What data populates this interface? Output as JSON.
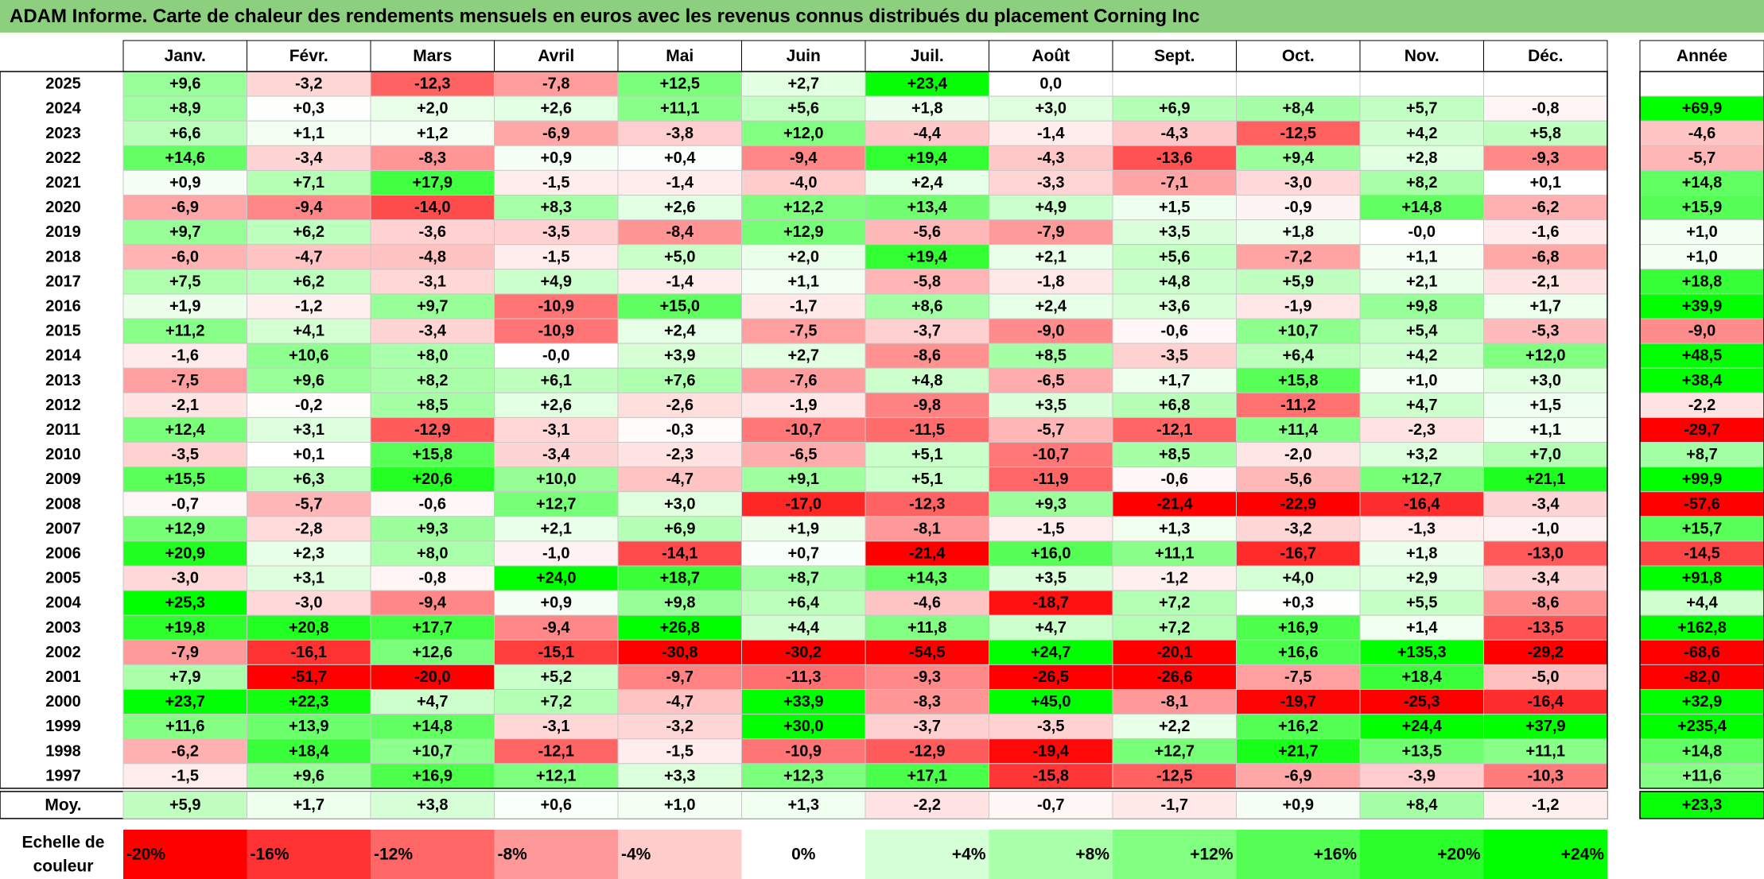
{
  "title": "ADAM Informe. Carte de chaleur des rendements mensuels en euros avec les revenus connus distribués du placement Corning Inc",
  "chart_data": {
    "type": "heatmap",
    "title": "ADAM Informe. Carte de chaleur des rendements mensuels en euros avec les revenus connus distribués du placement Corning Inc",
    "columns": [
      "Janv.",
      "Févr.",
      "Mars",
      "Avril",
      "Mai",
      "Juin",
      "Juil.",
      "Août",
      "Sept.",
      "Oct.",
      "Nov.",
      "Déc."
    ],
    "annual_header": "Année",
    "rows": [
      {
        "year": "2025",
        "values": [
          "+9,6",
          "-3,2",
          "-12,3",
          "-7,8",
          "+12,5",
          "+2,7",
          "+23,4",
          "0,0",
          "",
          "",
          "",
          ""
        ],
        "annual": ""
      },
      {
        "year": "2024",
        "values": [
          "+8,9",
          "+0,3",
          "+2,0",
          "+2,6",
          "+11,1",
          "+5,6",
          "+1,8",
          "+3,0",
          "+6,9",
          "+8,4",
          "+5,7",
          "-0,8"
        ],
        "annual": "+69,9"
      },
      {
        "year": "2023",
        "values": [
          "+6,6",
          "+1,1",
          "+1,2",
          "-6,9",
          "-3,8",
          "+12,0",
          "-4,4",
          "-1,4",
          "-4,3",
          "-12,5",
          "+4,2",
          "+5,8"
        ],
        "annual": "-4,6"
      },
      {
        "year": "2022",
        "values": [
          "+14,6",
          "-3,4",
          "-8,3",
          "+0,9",
          "+0,4",
          "-9,4",
          "+19,4",
          "-4,3",
          "-13,6",
          "+9,4",
          "+2,8",
          "-9,3"
        ],
        "annual": "-5,7"
      },
      {
        "year": "2021",
        "values": [
          "+0,9",
          "+7,1",
          "+17,9",
          "-1,5",
          "-1,4",
          "-4,0",
          "+2,4",
          "-3,3",
          "-7,1",
          "-3,0",
          "+8,2",
          "+0,1"
        ],
        "annual": "+14,8"
      },
      {
        "year": "2020",
        "values": [
          "-6,9",
          "-9,4",
          "-14,0",
          "+8,3",
          "+2,6",
          "+12,2",
          "+13,4",
          "+4,9",
          "+1,5",
          "-0,9",
          "+14,8",
          "-6,2"
        ],
        "annual": "+15,9"
      },
      {
        "year": "2019",
        "values": [
          "+9,7",
          "+6,2",
          "-3,6",
          "-3,5",
          "-8,4",
          "+12,9",
          "-5,6",
          "-7,9",
          "+3,5",
          "+1,8",
          "-0,0",
          "-1,6"
        ],
        "annual": "+1,0"
      },
      {
        "year": "2018",
        "values": [
          "-6,0",
          "-4,7",
          "-4,8",
          "-1,5",
          "+5,0",
          "+2,0",
          "+19,4",
          "+2,1",
          "+5,6",
          "-7,2",
          "+1,1",
          "-6,8"
        ],
        "annual": "+1,0"
      },
      {
        "year": "2017",
        "values": [
          "+7,5",
          "+6,2",
          "-3,1",
          "+4,9",
          "-1,4",
          "+1,1",
          "-5,8",
          "-1,8",
          "+4,8",
          "+5,9",
          "+2,1",
          "-2,1"
        ],
        "annual": "+18,8"
      },
      {
        "year": "2016",
        "values": [
          "+1,9",
          "-1,2",
          "+9,7",
          "-10,9",
          "+15,0",
          "-1,7",
          "+8,6",
          "+2,4",
          "+3,6",
          "-1,9",
          "+9,8",
          "+1,7"
        ],
        "annual": "+39,9"
      },
      {
        "year": "2015",
        "values": [
          "+11,2",
          "+4,1",
          "-3,4",
          "-10,9",
          "+2,4",
          "-7,5",
          "-3,7",
          "-9,0",
          "-0,6",
          "+10,7",
          "+5,4",
          "-5,3"
        ],
        "annual": "-9,0"
      },
      {
        "year": "2014",
        "values": [
          "-1,6",
          "+10,6",
          "+8,0",
          "-0,0",
          "+3,9",
          "+2,7",
          "-8,6",
          "+8,5",
          "-3,5",
          "+6,4",
          "+4,2",
          "+12,0"
        ],
        "annual": "+48,5"
      },
      {
        "year": "2013",
        "values": [
          "-7,5",
          "+9,6",
          "+8,2",
          "+6,1",
          "+7,6",
          "-7,6",
          "+4,8",
          "-6,5",
          "+1,7",
          "+15,8",
          "+1,0",
          "+3,0"
        ],
        "annual": "+38,4"
      },
      {
        "year": "2012",
        "values": [
          "-2,1",
          "-0,2",
          "+8,5",
          "+2,6",
          "-2,6",
          "-1,9",
          "-9,8",
          "+3,5",
          "+6,8",
          "-11,2",
          "+4,7",
          "+1,5"
        ],
        "annual": "-2,2"
      },
      {
        "year": "2011",
        "values": [
          "+12,4",
          "+3,1",
          "-12,9",
          "-3,1",
          "-0,3",
          "-10,7",
          "-11,5",
          "-5,7",
          "-12,1",
          "+11,4",
          "-2,3",
          "+1,1"
        ],
        "annual": "-29,7"
      },
      {
        "year": "2010",
        "values": [
          "-3,5",
          "+0,1",
          "+15,8",
          "-3,4",
          "-2,3",
          "-6,5",
          "+5,1",
          "-10,7",
          "+8,5",
          "-2,0",
          "+3,2",
          "+7,0"
        ],
        "annual": "+8,7"
      },
      {
        "year": "2009",
        "values": [
          "+15,5",
          "+6,3",
          "+20,6",
          "+10,0",
          "-4,7",
          "+9,1",
          "+5,1",
          "-11,9",
          "-0,6",
          "-5,6",
          "+12,7",
          "+21,1"
        ],
        "annual": "+99,9"
      },
      {
        "year": "2008",
        "values": [
          "-0,7",
          "-5,7",
          "-0,6",
          "+12,7",
          "+3,0",
          "-17,0",
          "-12,3",
          "+9,3",
          "-21,4",
          "-22,9",
          "-16,4",
          "-3,4"
        ],
        "annual": "-57,6"
      },
      {
        "year": "2007",
        "values": [
          "+12,9",
          "-2,8",
          "+9,3",
          "+2,1",
          "+6,9",
          "+1,9",
          "-8,1",
          "-1,5",
          "+1,3",
          "-3,2",
          "-1,3",
          "-1,0"
        ],
        "annual": "+15,7"
      },
      {
        "year": "2006",
        "values": [
          "+20,9",
          "+2,3",
          "+8,0",
          "-1,0",
          "-14,1",
          "+0,7",
          "-21,4",
          "+16,0",
          "+11,1",
          "-16,7",
          "+1,8",
          "-13,0"
        ],
        "annual": "-14,5"
      },
      {
        "year": "2005",
        "values": [
          "-3,0",
          "+3,1",
          "-0,8",
          "+24,0",
          "+18,7",
          "+8,7",
          "+14,3",
          "+3,5",
          "-1,2",
          "+4,0",
          "+2,9",
          "-3,4"
        ],
        "annual": "+91,8"
      },
      {
        "year": "2004",
        "values": [
          "+25,3",
          "-3,0",
          "-9,4",
          "+0,9",
          "+9,8",
          "+6,4",
          "-4,6",
          "-18,7",
          "+7,2",
          "+0,3",
          "+5,5",
          "-8,6"
        ],
        "annual": "+4,4"
      },
      {
        "year": "2003",
        "values": [
          "+19,8",
          "+20,8",
          "+17,7",
          "-9,4",
          "+26,8",
          "+4,4",
          "+11,8",
          "+4,7",
          "+7,2",
          "+16,9",
          "+1,4",
          "-13,5"
        ],
        "annual": "+162,8"
      },
      {
        "year": "2002",
        "values": [
          "-7,9",
          "-16,1",
          "+12,6",
          "-15,1",
          "-30,8",
          "-30,2",
          "-54,5",
          "+24,7",
          "-20,1",
          "+16,6",
          "+135,3",
          "-29,2"
        ],
        "annual": "-68,6"
      },
      {
        "year": "2001",
        "values": [
          "+7,9",
          "-51,7",
          "-20,0",
          "+5,2",
          "-9,7",
          "-11,3",
          "-9,3",
          "-26,5",
          "-26,6",
          "-7,5",
          "+18,4",
          "-5,0"
        ],
        "annual": "-82,0"
      },
      {
        "year": "2000",
        "values": [
          "+23,7",
          "+22,3",
          "+4,7",
          "+7,2",
          "-4,7",
          "+33,9",
          "-8,3",
          "+45,0",
          "-8,1",
          "-19,7",
          "-25,3",
          "-16,4"
        ],
        "annual": "+32,9"
      },
      {
        "year": "1999",
        "values": [
          "+11,6",
          "+13,9",
          "+14,8",
          "-3,1",
          "-3,2",
          "+30,0",
          "-3,7",
          "-3,5",
          "+2,2",
          "+16,2",
          "+24,4",
          "+37,9"
        ],
        "annual": "+235,4"
      },
      {
        "year": "1998",
        "values": [
          "-6,2",
          "+18,4",
          "+10,7",
          "-12,1",
          "-1,5",
          "-10,9",
          "-12,9",
          "-19,4",
          "+12,7",
          "+21,7",
          "+13,5",
          "+11,1"
        ],
        "annual": "+14,8"
      },
      {
        "year": "1997",
        "values": [
          "-1,5",
          "+9,6",
          "+16,9",
          "+12,1",
          "+3,3",
          "+12,3",
          "+17,1",
          "-15,8",
          "-12,5",
          "-6,9",
          "-3,9",
          "-10,3"
        ],
        "annual": "+11,6"
      }
    ],
    "average": {
      "label": "Moy.",
      "values": [
        "+5,9",
        "+1,7",
        "+3,8",
        "+0,6",
        "+1,0",
        "+1,3",
        "-2,2",
        "-0,7",
        "-1,7",
        "+0,9",
        "+8,4",
        "-1,2"
      ],
      "annual": "+23,3"
    },
    "scale": {
      "label_line1": "Echelle de",
      "label_line2": "couleur",
      "stops": [
        "-20%",
        "-16%",
        "-12%",
        "-8%",
        "-4%",
        "0%",
        "+4%",
        "+8%",
        "+12%",
        "+16%",
        "+20%",
        "+24%"
      ]
    },
    "colors": {
      "negative": "#ff0000",
      "neutral": "#ffffff",
      "positive": "#00ff00",
      "title_bar": "#8ccf7e"
    }
  }
}
